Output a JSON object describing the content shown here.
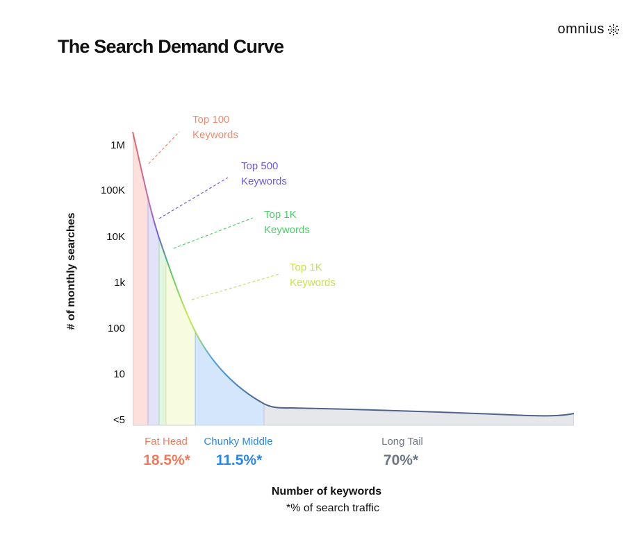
{
  "title": "The Search Demand Curve",
  "logo": {
    "text": "omnius",
    "icon": "omnius-burst-icon"
  },
  "chart_data": {
    "type": "area",
    "y_scale": "log",
    "yticks": [
      "<5",
      "10",
      "100",
      "1k",
      "10K",
      "100K",
      "1M"
    ],
    "ylabel": "# of monthly searches",
    "xlabel": "Number of keywords",
    "footnote": "*% of search traffic",
    "callouts": [
      {
        "line1": "Top 100",
        "line2": "Keywords",
        "color": "#f08a6e"
      },
      {
        "line1": "Top 500",
        "line2": "Keywords",
        "color": "#6a5be0"
      },
      {
        "line1": "Top 1K",
        "line2": "Keywords",
        "color": "#4ecb68"
      },
      {
        "line1": "Top 1K",
        "line2": "Keywords",
        "color": "#c7e34b"
      }
    ],
    "segments": [
      {
        "label": "Fat Head",
        "value": "18.5%*",
        "color": "#f07a5a"
      },
      {
        "label": "Chunky Middle",
        "value": "11.5%*",
        "color": "#2a87e6"
      },
      {
        "label": "Long Tail",
        "value": "70%*",
        "color": "#6c7583"
      }
    ],
    "colors": {
      "region_top100": "#fde0db",
      "region_top500": "#e2e2fb",
      "region_top1k": "#e1f5e2",
      "region_top1k_b": "#f7fce0",
      "region_middle": "#d4e6fb",
      "region_tail": "#e5e7eb",
      "tail_curve": "#4f6388"
    }
  }
}
